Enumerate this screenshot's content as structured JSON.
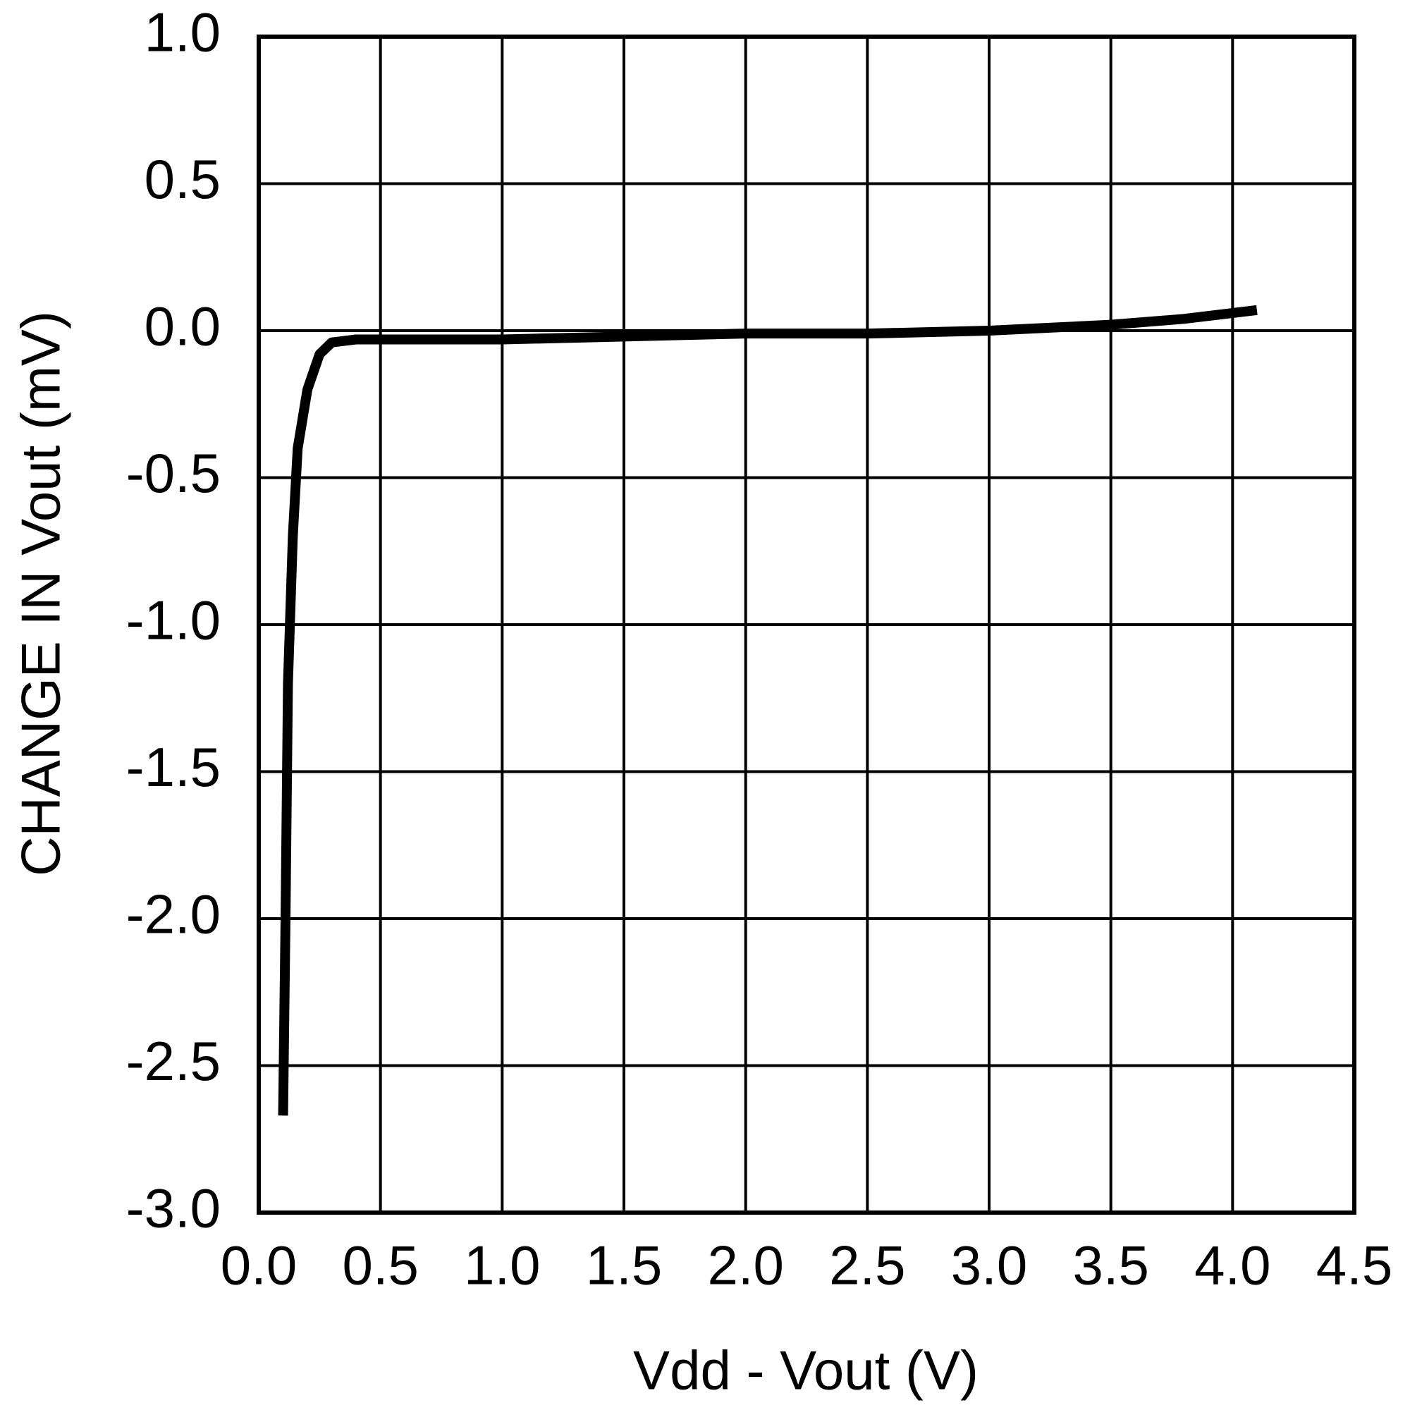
{
  "chart_data": {
    "type": "line",
    "xlabel": "Vdd - Vout (V)",
    "ylabel": "CHANGE IN Vout (mV)",
    "x": [
      0.1,
      0.11,
      0.12,
      0.14,
      0.16,
      0.2,
      0.25,
      0.3,
      0.4,
      0.5,
      1.0,
      1.5,
      2.0,
      2.5,
      3.0,
      3.5,
      3.8,
      4.1
    ],
    "series": [
      {
        "color": "#000000",
        "values": [
          -2.67,
          -2.0,
          -1.2,
          -0.7,
          -0.4,
          -0.2,
          -0.08,
          -0.04,
          -0.03,
          -0.03,
          -0.03,
          -0.02,
          -0.01,
          -0.01,
          0.0,
          0.02,
          0.04,
          0.07
        ]
      }
    ],
    "xlim": [
      0,
      4.5
    ],
    "ylim": [
      -3,
      1
    ],
    "xticks": [
      {
        "value": 0,
        "label": "0.0"
      },
      0.5,
      {
        "value": 1,
        "label": "1.0"
      },
      1.5,
      {
        "value": 2,
        "label": "2.0"
      },
      2.5,
      {
        "value": 3,
        "label": "3.0"
      },
      3.5,
      {
        "value": 4,
        "label": "4.0"
      },
      4.5
    ],
    "yticks": [
      {
        "value": -3,
        "label": "-3.0"
      },
      -2.5,
      {
        "value": -2,
        "label": "-2.0"
      },
      -1.5,
      {
        "value": -1,
        "label": "-1.0"
      },
      -0.5,
      {
        "value": 0,
        "label": "0.0"
      },
      0.5,
      {
        "value": 1,
        "label": "1.0"
      }
    ],
    "grid": true
  }
}
